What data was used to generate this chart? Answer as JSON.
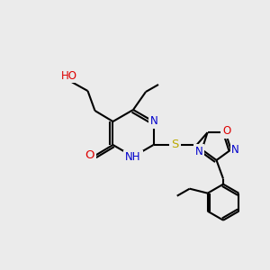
{
  "bg_color": "#ebebeb",
  "bond_color": "#000000",
  "bond_width": 1.5,
  "atom_colors": {
    "N": "#0000cc",
    "O": "#dd0000",
    "S": "#bbaa00",
    "H": "#008080",
    "C": "#000000"
  },
  "font_size": 8.5,
  "title": ""
}
